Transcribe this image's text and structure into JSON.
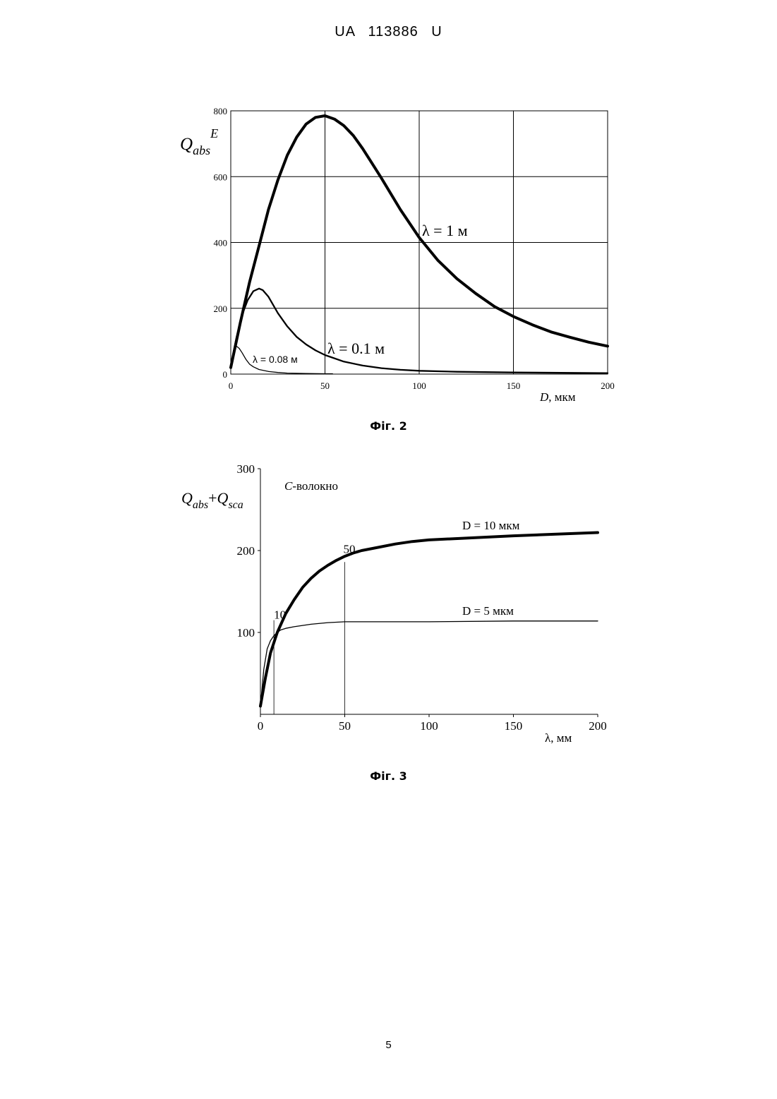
{
  "header": {
    "title": "UA   113886   U"
  },
  "page_number": "5",
  "figure2": {
    "caption": "Фіг. 2"
  },
  "figure3": {
    "caption": "Фіг. 3"
  },
  "chart_data": [
    {
      "type": "line",
      "ylabel": {
        "main": "Q",
        "sub": "abs",
        "sup": "E"
      },
      "xlabel": {
        "var": "D",
        "unit": ", мкм"
      },
      "xlim": [
        0,
        200
      ],
      "ylim": [
        0,
        800
      ],
      "x_ticks": [
        "0",
        "50",
        "100",
        "150",
        "200"
      ],
      "y_ticks": [
        "0",
        "200",
        "400",
        "600",
        "800"
      ],
      "grid": true,
      "series": [
        {
          "name": "λ = 1  м",
          "stroke": "thick",
          "x": [
            0,
            5,
            10,
            15,
            20,
            25,
            30,
            35,
            40,
            45,
            50,
            55,
            60,
            65,
            70,
            75,
            80,
            90,
            100,
            110,
            120,
            130,
            140,
            150,
            160,
            170,
            180,
            190,
            200
          ],
          "y": [
            20,
            155,
            280,
            390,
            500,
            590,
            665,
            720,
            760,
            780,
            785,
            775,
            755,
            725,
            685,
            640,
            595,
            500,
            415,
            345,
            290,
            245,
            205,
            175,
            150,
            128,
            112,
            97,
            85
          ]
        },
        {
          "name": "λ = 0.1  м",
          "stroke": "medium",
          "x": [
            0,
            3,
            6,
            9,
            12,
            15,
            17,
            20,
            25,
            30,
            35,
            40,
            45,
            50,
            60,
            70,
            80,
            90,
            100,
            120,
            150,
            200
          ],
          "y": [
            25,
            110,
            180,
            225,
            252,
            260,
            255,
            235,
            185,
            145,
            113,
            90,
            72,
            58,
            38,
            26,
            18,
            13,
            10,
            7,
            5,
            3
          ]
        },
        {
          "name": "λ = 0.08 м",
          "stroke": "thin",
          "x": [
            0,
            1.5,
            3,
            4.5,
            6,
            8,
            10,
            12,
            15,
            20,
            25,
            30,
            40,
            50,
            54
          ],
          "y": [
            25,
            70,
            85,
            78,
            65,
            45,
            30,
            22,
            14,
            8,
            5,
            3,
            2,
            1,
            1
          ]
        }
      ],
      "annotations": [
        "λ = 1  м",
        "λ = 0.1  м",
        "λ = 0.08 м"
      ]
    },
    {
      "type": "line",
      "ylabel": {
        "q1": "Q",
        "sub1": "abs",
        "plus": "+",
        "q2": "Q",
        "sub2": "sca"
      },
      "xlabel": "λ, мм",
      "xlim": [
        0,
        200
      ],
      "ylim": [
        0,
        300
      ],
      "x_ticks": [
        "0",
        "50",
        "100",
        "150",
        "200"
      ],
      "y_ticks": [
        "100",
        "200",
        "300"
      ],
      "grid": false,
      "annotation_title": {
        "italic": "C",
        "rest": "-волокно"
      },
      "marker_lines": [
        {
          "x": 8,
          "label": "10"
        },
        {
          "x": 50,
          "label": "50"
        }
      ],
      "series": [
        {
          "name": "D = 10 мкм",
          "stroke": "thick",
          "x": [
            0,
            3,
            6,
            10,
            15,
            20,
            25,
            30,
            35,
            40,
            45,
            50,
            55,
            60,
            70,
            80,
            90,
            100,
            120,
            150,
            200
          ],
          "y": [
            10,
            45,
            75,
            100,
            123,
            140,
            155,
            166,
            175,
            182,
            188,
            193,
            197,
            200,
            204,
            208,
            211,
            213,
            215,
            218,
            222
          ]
        },
        {
          "name": "D = 5 мкм",
          "stroke": "thin",
          "x": [
            0,
            2,
            4,
            6,
            8,
            10,
            12,
            15,
            20,
            30,
            40,
            50,
            60,
            80,
            100,
            150,
            200
          ],
          "y": [
            10,
            55,
            80,
            90,
            96,
            100,
            103,
            105,
            107,
            110,
            112,
            113,
            113,
            113,
            113,
            114,
            114
          ]
        }
      ],
      "annotations": [
        "D = 10 мкм",
        "D = 5 мкм"
      ]
    }
  ]
}
